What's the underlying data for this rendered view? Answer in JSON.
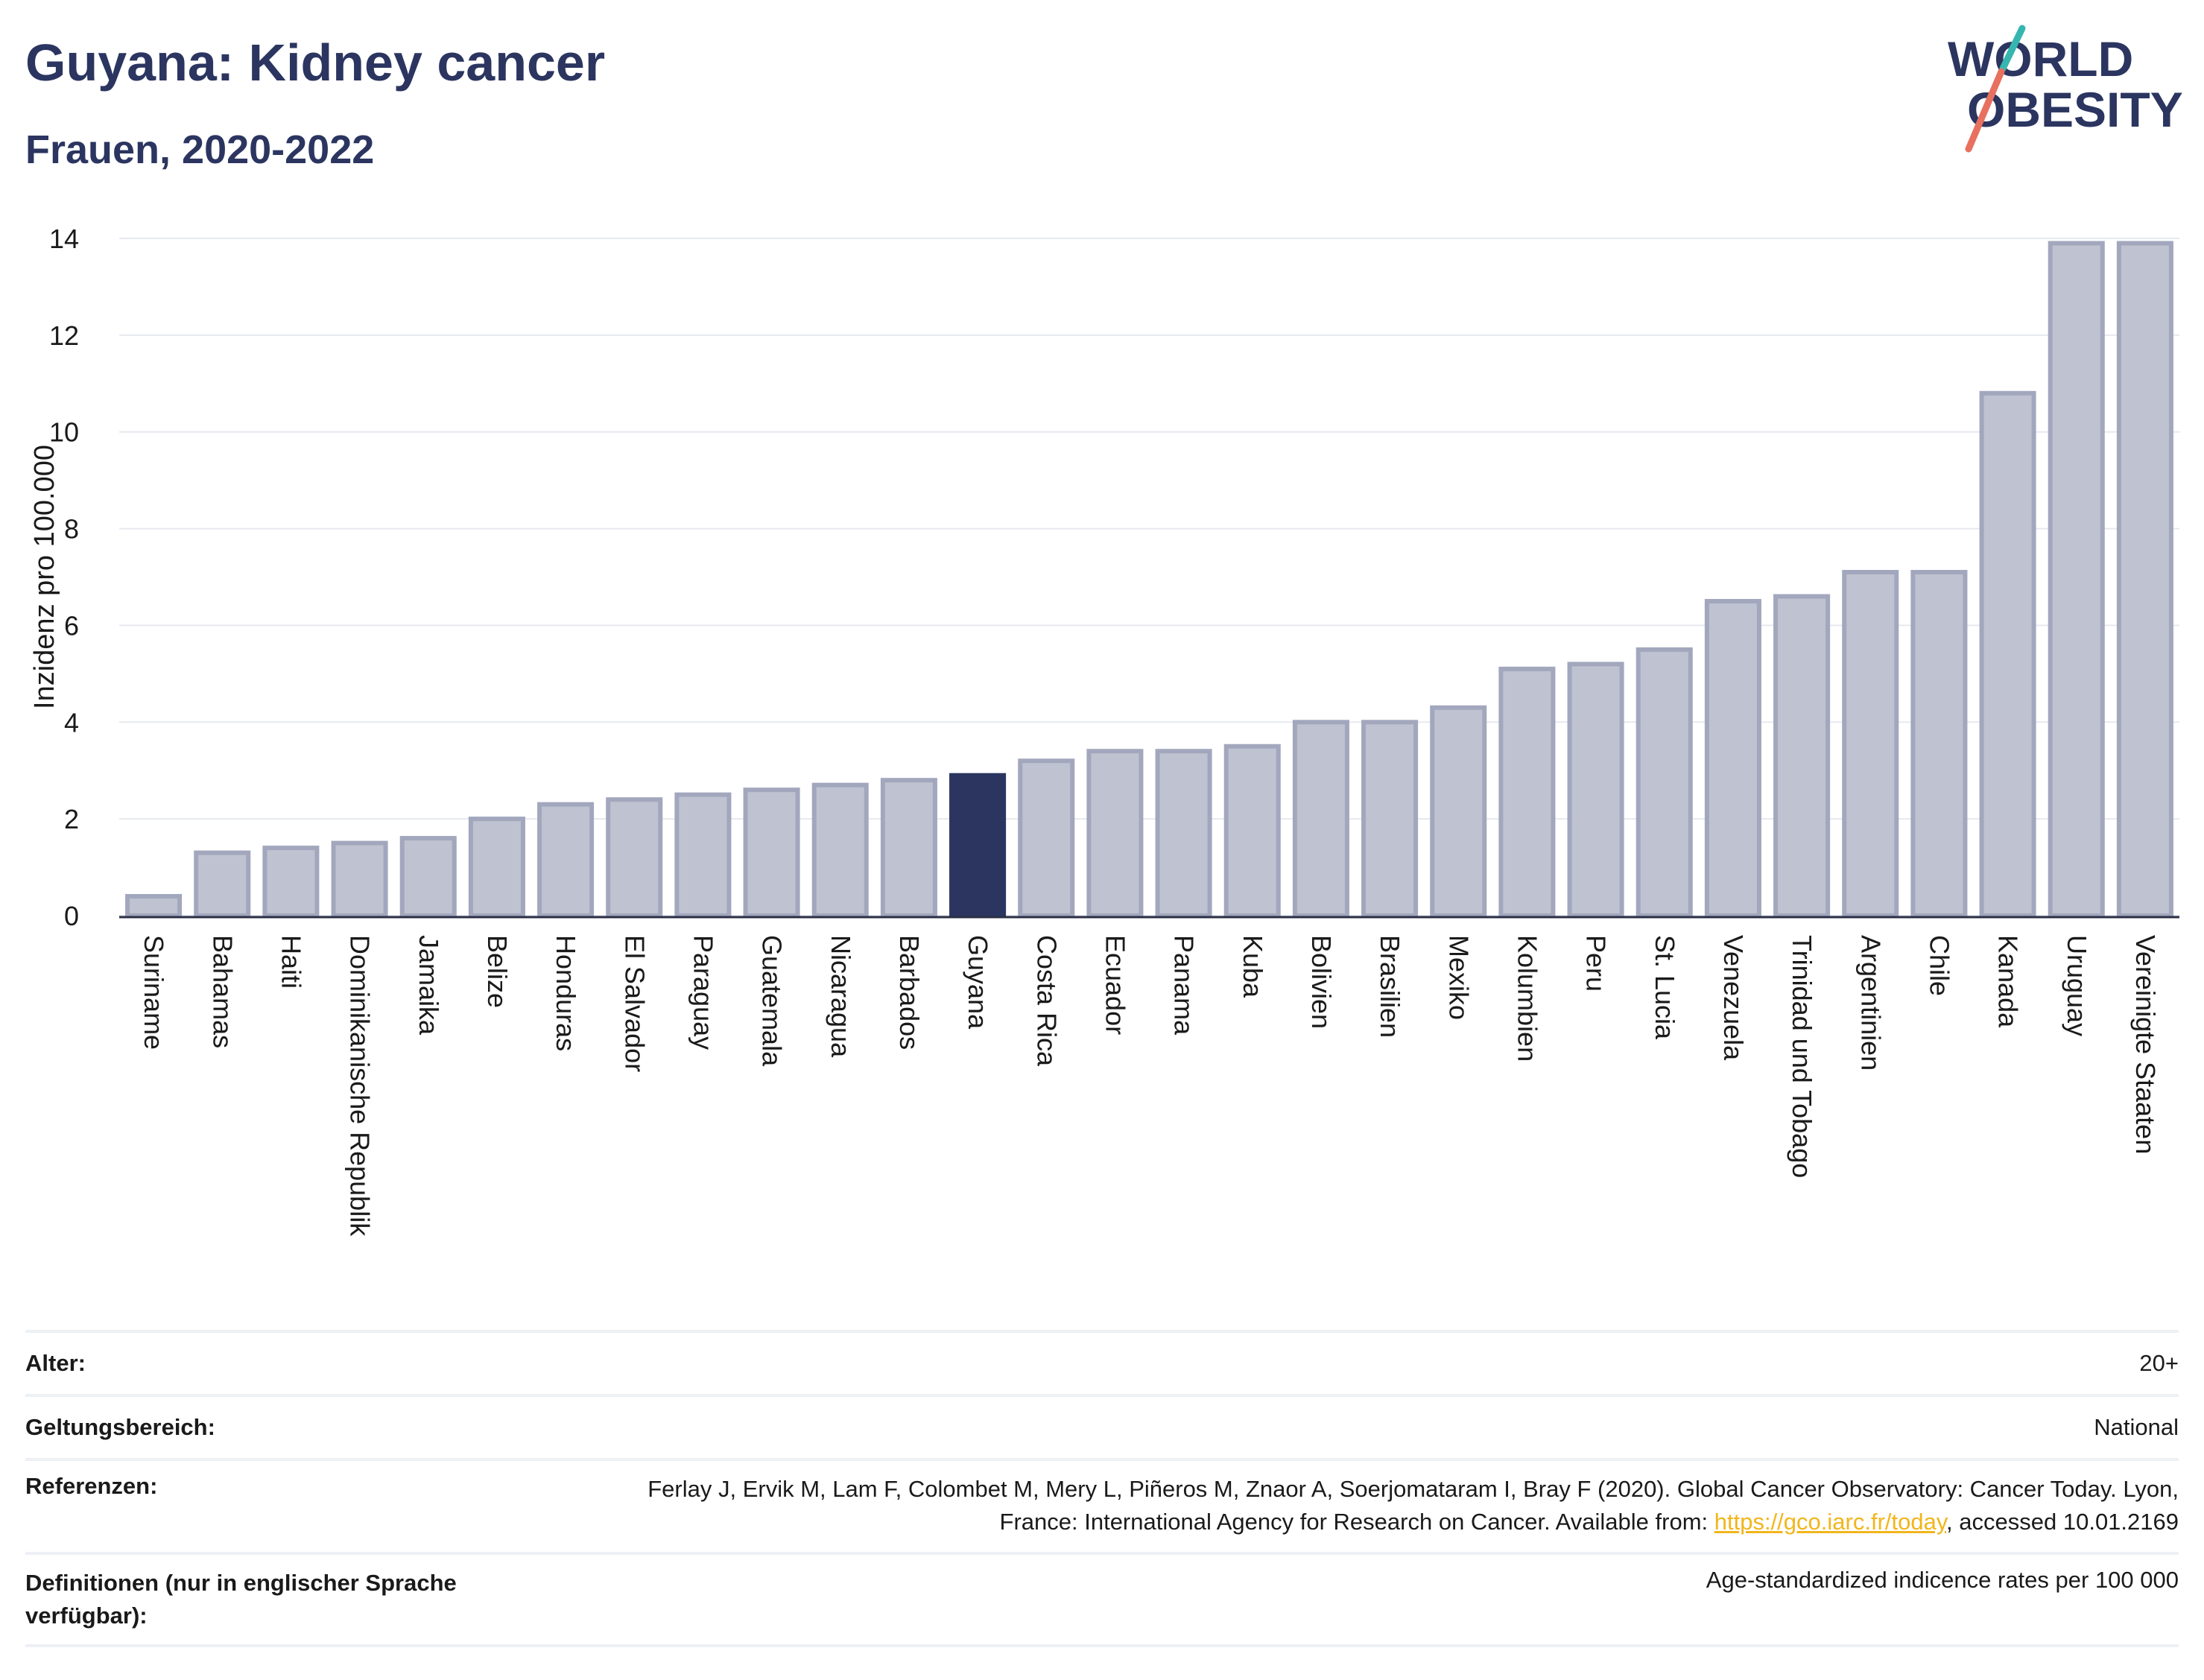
{
  "header": {
    "title": "Guyana: Kidney cancer",
    "subtitle": "Frauen, 2020-2022"
  },
  "logo": {
    "line1": "WORLD",
    "line2": "OBESITY"
  },
  "chart_data": {
    "type": "bar",
    "ylabel": "Inzidenz pro 100.000",
    "ylim": [
      0,
      14
    ],
    "yticks": [
      0,
      2,
      4,
      6,
      8,
      10,
      12,
      14
    ],
    "grid": true,
    "highlight": "Guyana",
    "colors": {
      "bar": "#bfc2d0",
      "bar_edge": "#a2a7bd",
      "highlight": "#2b3560",
      "grid": "#e6e9ef"
    },
    "categories": [
      "Suriname",
      "Bahamas",
      "Haiti",
      "Dominikanische Republik",
      "Jamaika",
      "Belize",
      "Honduras",
      "El Salvador",
      "Paraguay",
      "Guatemala",
      "Nicaragua",
      "Barbados",
      "Guyana",
      "Costa Rica",
      "Ecuador",
      "Panama",
      "Kuba",
      "Bolivien",
      "Brasilien",
      "Mexiko",
      "Kolumbien",
      "Peru",
      "St. Lucia",
      "Venezuela",
      "Trinidad und Tobago",
      "Argentinien",
      "Chile",
      "Kanada",
      "Uruguay",
      "Vereinigte Staaten"
    ],
    "values": [
      0.4,
      1.3,
      1.4,
      1.5,
      1.6,
      2.0,
      2.3,
      2.4,
      2.5,
      2.6,
      2.7,
      2.8,
      2.9,
      3.2,
      3.4,
      3.4,
      3.5,
      4.0,
      4.0,
      4.3,
      5.1,
      5.2,
      5.5,
      6.5,
      6.6,
      7.1,
      7.1,
      10.8,
      13.9,
      13.9
    ]
  },
  "meta": {
    "age_label": "Alter:",
    "age_value": "20+",
    "scope_label": "Geltungsbereich:",
    "scope_value": "National",
    "ref_label": "Referenzen:",
    "ref_text": "Ferlay J, Ervik M, Lam F, Colombet M, Mery L, Piñeros M, Znaor A, Soerjomataram I, Bray F (2020). Global Cancer Observatory: Cancer Today. Lyon, France: International Agency for Research on Cancer. Available from: ",
    "ref_link": "https://gco.iarc.fr/today",
    "ref_suffix": ", accessed 10.01.2169",
    "def_label": "Definitionen (nur in englischer Sprache verfügbar):",
    "def_value": "Age-standardized indicence rates per 100 000"
  }
}
